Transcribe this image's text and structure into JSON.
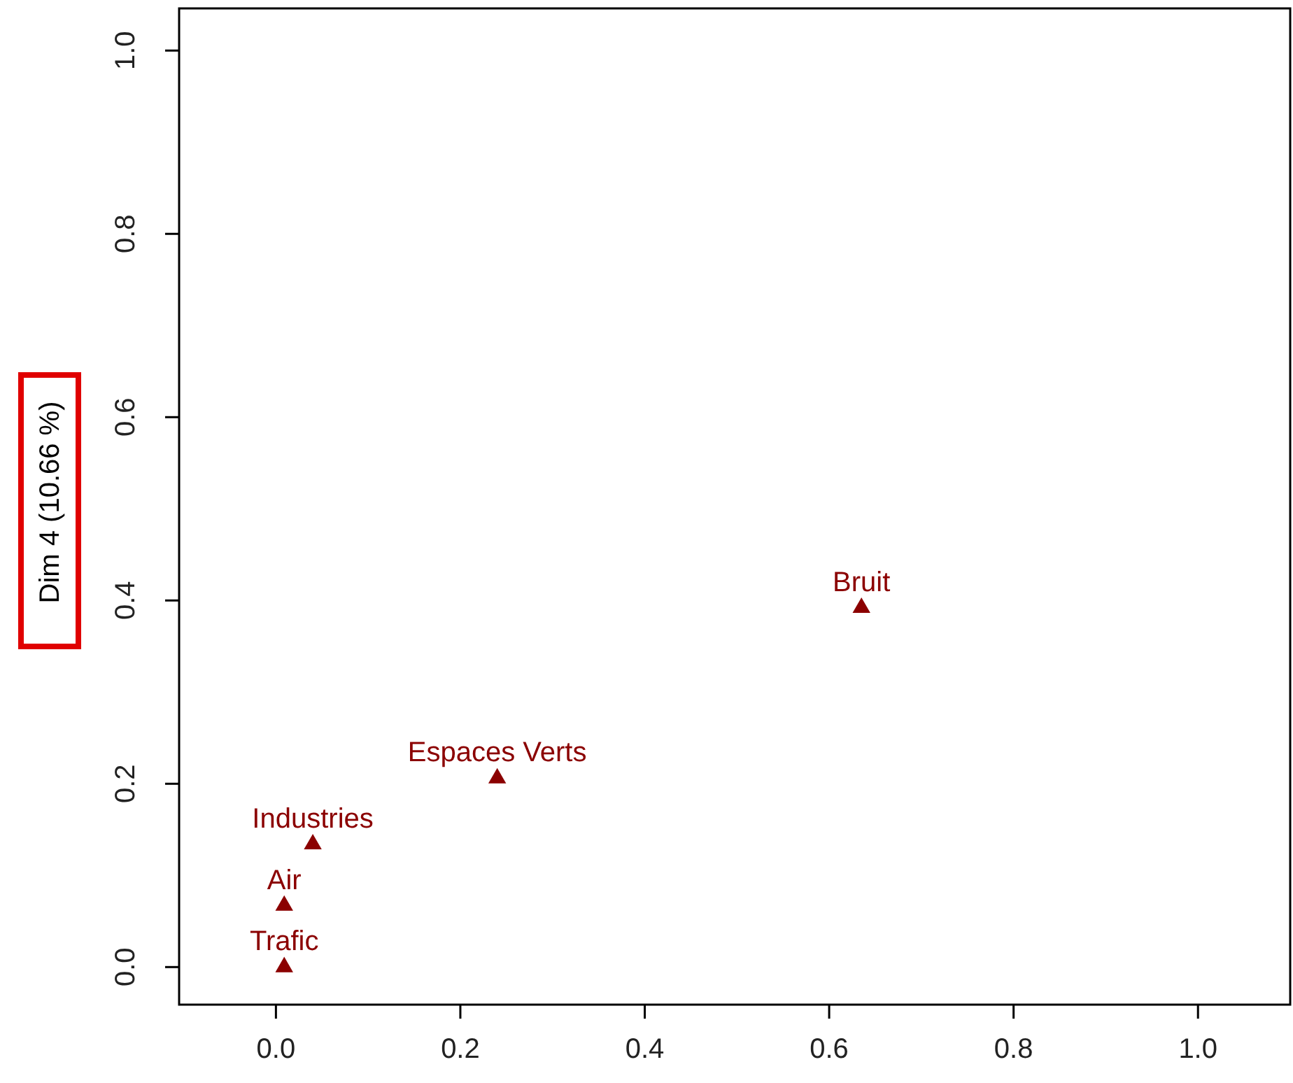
{
  "chart_data": {
    "type": "scatter",
    "ylabel": "Dim 4 (10.66 %)",
    "xlim": [
      -0.105,
      1.1
    ],
    "ylim": [
      -0.041,
      1.046
    ],
    "xticks": [
      {
        "value": 0,
        "label": "0.0"
      },
      0.2,
      0.4,
      0.6,
      0.8,
      {
        "value": 1,
        "label": "1.0"
      }
    ],
    "yticks": [
      {
        "value": 0,
        "label": "0.0"
      },
      0.2,
      0.4,
      0.6,
      0.8,
      {
        "value": 1,
        "label": "1.0"
      }
    ],
    "marker": "triangle",
    "grid": false,
    "series": [
      {
        "name": "Trafic",
        "color": "#8b0000",
        "x": [
          0.009
        ],
        "values": [
          0.0
        ]
      },
      {
        "name": "Air",
        "color": "#8b0000",
        "x": [
          0.009
        ],
        "values": [
          0.067
        ]
      },
      {
        "name": "Industries",
        "color": "#8b0000",
        "x": [
          0.04
        ],
        "values": [
          0.134
        ]
      },
      {
        "name": "Espaces Verts",
        "color": "#8b0000",
        "x": [
          0.24
        ],
        "values": [
          0.206
        ]
      },
      {
        "name": "Bruit",
        "color": "#8b0000",
        "x": [
          0.635
        ],
        "values": [
          0.392
        ]
      }
    ]
  }
}
